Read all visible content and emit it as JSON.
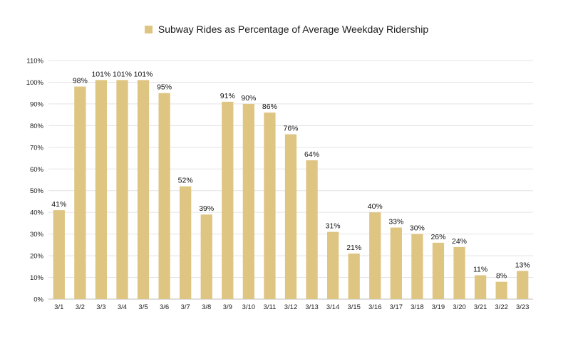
{
  "chart_data": {
    "type": "bar",
    "categories": [
      "3/1",
      "3/2",
      "3/3",
      "3/4",
      "3/5",
      "3/6",
      "3/7",
      "3/8",
      "3/9",
      "3/10",
      "3/11",
      "3/12",
      "3/13",
      "3/14",
      "3/15",
      "3/16",
      "3/17",
      "3/18",
      "3/19",
      "3/20",
      "3/21",
      "3/22",
      "3/23"
    ],
    "series": [
      {
        "name": "Subway Rides as Percentage of Average Weekday Ridership",
        "values": [
          41,
          98,
          101,
          101,
          101,
          95,
          52,
          39,
          91,
          90,
          86,
          76,
          64,
          31,
          21,
          40,
          33,
          30,
          26,
          24,
          11,
          8,
          13
        ],
        "value_labels": [
          "41%",
          "98%",
          "101%",
          "101%",
          "101%",
          "95%",
          "52%",
          "39%",
          "91%",
          "90%",
          "86%",
          "76%",
          "64%",
          "31%",
          "21%",
          "40%",
          "33%",
          "30%",
          "26%",
          "24%",
          "11%",
          "8%",
          "13%"
        ],
        "color": "#dfc582"
      }
    ],
    "ylim": [
      0,
      110
    ],
    "yticks": [
      "0%",
      "10%",
      "20%",
      "30%",
      "40%",
      "50%",
      "60%",
      "70%",
      "80%",
      "90%",
      "100%",
      "110%"
    ],
    "ytick_values": [
      0,
      10,
      20,
      30,
      40,
      50,
      60,
      70,
      80,
      90,
      100,
      110
    ],
    "grid": true,
    "legend_position": "top-center",
    "gridline_color": "#e3e3e3",
    "xlabel": "",
    "ylabel": "",
    "title": ""
  }
}
